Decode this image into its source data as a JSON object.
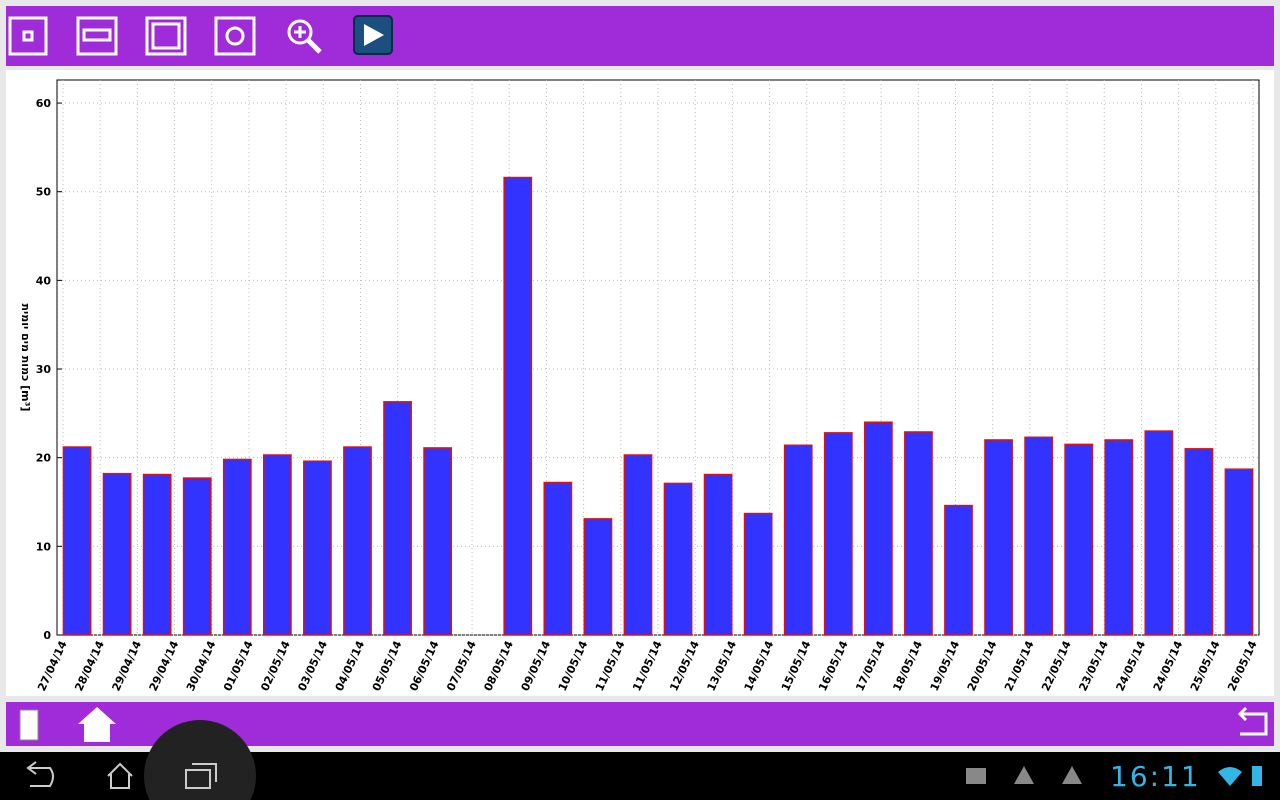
{
  "chart_data": {
    "type": "bar",
    "y_label": "כמות מים יומית [m³]",
    "x_tick_labels": [
      "27/04/14",
      "28/04/14",
      "29/04/14",
      "29/04/14",
      "30/04/14",
      "01/05/14",
      "02/05/14",
      "03/05/14",
      "04/05/14",
      "05/05/14",
      "06/05/14",
      "07/05/14",
      "08/05/14",
      "09/05/14",
      "10/05/14",
      "11/05/14",
      "11/05/14",
      "12/05/14",
      "13/05/14",
      "14/05/14",
      "15/05/14",
      "16/05/14",
      "17/05/14",
      "18/05/14",
      "19/05/14",
      "20/05/14",
      "21/05/14",
      "22/05/14",
      "23/05/14",
      "24/05/14",
      "24/05/14",
      "25/05/14",
      "26/05/14"
    ],
    "values": [
      21.2,
      18.2,
      18.1,
      17.7,
      19.8,
      20.3,
      19.6,
      21.2,
      26.3,
      21.1,
      0,
      51.6,
      17.2,
      13.1,
      20.3,
      17.1,
      18.1,
      13.7,
      21.4,
      22.8,
      24.0,
      22.9,
      14.6,
      22.0,
      22.3,
      21.5,
      22.0,
      23.0,
      21.0,
      18.7
    ],
    "color": "#3333ff",
    "edge_color": "#dd1111",
    "ylim": [
      0,
      62.6
    ],
    "yticks": [
      0,
      10,
      20,
      30,
      40,
      50,
      60
    ],
    "grid": true
  },
  "status_bar": {
    "time": "16:11"
  }
}
